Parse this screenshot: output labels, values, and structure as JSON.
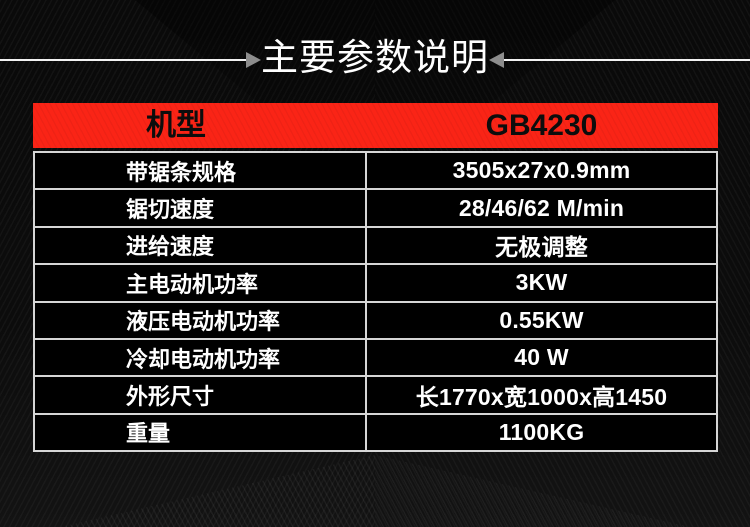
{
  "title": "主要参数说明",
  "table": {
    "header": {
      "label": "机型",
      "value": "GB4230"
    },
    "rows": [
      {
        "label": "带锯条规格",
        "value": "3505x27x0.9mm"
      },
      {
        "label": "锯切速度",
        "value": "28/46/62 M/min"
      },
      {
        "label": "进给速度",
        "value": "无极调整"
      },
      {
        "label": "主电动机功率",
        "value": "3KW"
      },
      {
        "label": "液压电动机功率",
        "value": "0.55KW"
      },
      {
        "label": "冷却电动机功率",
        "value": "40 W"
      },
      {
        "label": "外形尺寸",
        "value": "长1770x宽1000x高1450"
      },
      {
        "label": "重量",
        "value": "1100KG"
      }
    ]
  },
  "colors": {
    "accent_red": "#fa2416",
    "row_bg": "#000000",
    "grid_border": "#d6d6d6",
    "header_text": "#0d0d0d",
    "body_text": "#ffffff",
    "arrow_gray": "#8d8d8d",
    "page_bg": "#0c0c0c"
  }
}
